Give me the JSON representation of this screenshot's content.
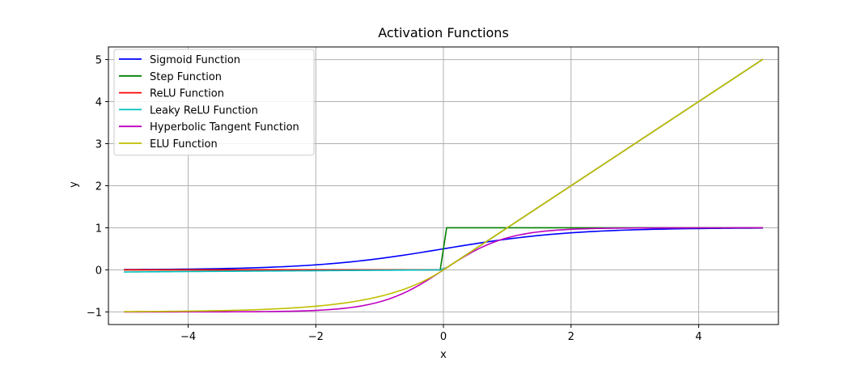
{
  "chart_data": {
    "type": "line",
    "title": "Activation Functions",
    "xlabel": "x",
    "ylabel": "y",
    "xlim": [
      -5.25,
      5.25
    ],
    "ylim": [
      -1.3,
      5.3
    ],
    "xticks": [
      -4,
      -2,
      0,
      2,
      4
    ],
    "yticks": [
      -1,
      0,
      1,
      2,
      3,
      4,
      5
    ],
    "xtick_labels": [
      "−4",
      "−2",
      "0",
      "2",
      "4"
    ],
    "ytick_labels": [
      "−1",
      "0",
      "1",
      "2",
      "3",
      "4",
      "5"
    ],
    "grid": true,
    "legend_position": "top-left",
    "x_domain": [
      -5,
      5
    ],
    "series": [
      {
        "name": "Sigmoid Function",
        "color": "#0000ff",
        "function": "sigmoid"
      },
      {
        "name": "Step Function",
        "color": "#008000",
        "function": "step"
      },
      {
        "name": "ReLU Function",
        "color": "#ff0000",
        "function": "relu"
      },
      {
        "name": "Leaky ReLU Function",
        "color": "#00bfbf",
        "function": "leaky_relu"
      },
      {
        "name": "Hyperbolic Tangent Function",
        "color": "#bf00bf",
        "function": "tanh"
      },
      {
        "name": "ELU Function",
        "color": "#bfbf00",
        "function": "elu"
      }
    ]
  }
}
